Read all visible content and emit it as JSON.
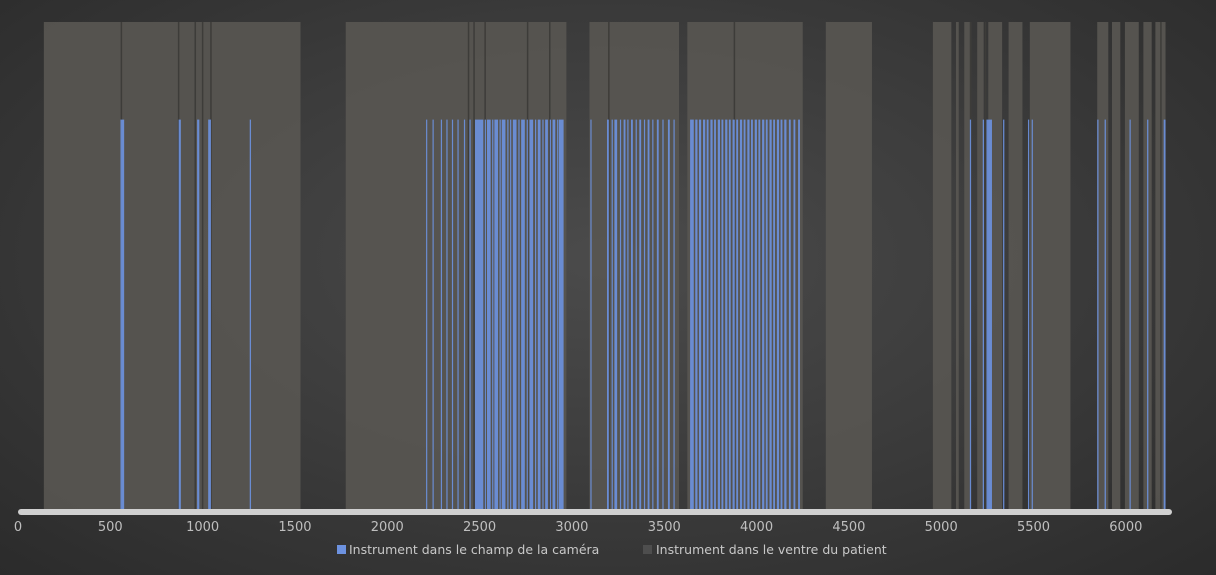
{
  "chart_data": {
    "type": "bar",
    "title": "",
    "xlabel": "",
    "ylabel": "",
    "xlim": [
      0,
      6250
    ],
    "x_ticks": [
      "0",
      "500",
      "1000",
      "1500",
      "2000",
      "2500",
      "3000",
      "3500",
      "4000",
      "4500",
      "5000",
      "5500",
      "6000"
    ],
    "grid": false,
    "legend_position": "bottom",
    "colors": {
      "background": "#3a3a3a",
      "camera": "#6d92e0",
      "belly": "#585651",
      "axis": "#d0d0d0"
    },
    "series": [
      {
        "name": "Instrument dans le champ de la caméra",
        "value": 1,
        "color": "#6d92e0",
        "intervals": [
          [
            555,
            575
          ],
          [
            870,
            882
          ],
          [
            970,
            982
          ],
          [
            1030,
            1045
          ],
          [
            1255,
            1262
          ],
          [
            2210,
            2216
          ],
          [
            2245,
            2250
          ],
          [
            2290,
            2294
          ],
          [
            2320,
            2324
          ],
          [
            2350,
            2354
          ],
          [
            2380,
            2384
          ],
          [
            2415,
            2420
          ],
          [
            2445,
            2450
          ],
          [
            2475,
            2520
          ],
          [
            2528,
            2534
          ],
          [
            2540,
            2560
          ],
          [
            2568,
            2574
          ],
          [
            2580,
            2600
          ],
          [
            2608,
            2614
          ],
          [
            2620,
            2640
          ],
          [
            2650,
            2656
          ],
          [
            2665,
            2670
          ],
          [
            2680,
            2700
          ],
          [
            2710,
            2716
          ],
          [
            2725,
            2745
          ],
          [
            2755,
            2760
          ],
          [
            2770,
            2790
          ],
          [
            2800,
            2806
          ],
          [
            2815,
            2830
          ],
          [
            2840,
            2846
          ],
          [
            2855,
            2870
          ],
          [
            2880,
            2886
          ],
          [
            2895,
            2910
          ],
          [
            2920,
            2926
          ],
          [
            2930,
            2955
          ],
          [
            3100,
            3106
          ],
          [
            3190,
            3200
          ],
          [
            3215,
            3220
          ],
          [
            3230,
            3245
          ],
          [
            3260,
            3266
          ],
          [
            3280,
            3290
          ],
          [
            3300,
            3306
          ],
          [
            3320,
            3330
          ],
          [
            3345,
            3350
          ],
          [
            3365,
            3375
          ],
          [
            3390,
            3396
          ],
          [
            3410,
            3420
          ],
          [
            3435,
            3440
          ],
          [
            3460,
            3470
          ],
          [
            3490,
            3496
          ],
          [
            3520,
            3530
          ],
          [
            3550,
            3556
          ],
          [
            3640,
            3660
          ],
          [
            3668,
            3680
          ],
          [
            3688,
            3700
          ],
          [
            3710,
            3722
          ],
          [
            3730,
            3740
          ],
          [
            3750,
            3762
          ],
          [
            3770,
            3780
          ],
          [
            3790,
            3802
          ],
          [
            3810,
            3820
          ],
          [
            3830,
            3842
          ],
          [
            3850,
            3860
          ],
          [
            3870,
            3882
          ],
          [
            3890,
            3900
          ],
          [
            3910,
            3922
          ],
          [
            3930,
            3940
          ],
          [
            3950,
            3962
          ],
          [
            3970,
            3980
          ],
          [
            3990,
            4002
          ],
          [
            4010,
            4020
          ],
          [
            4030,
            4042
          ],
          [
            4050,
            4060
          ],
          [
            4070,
            4082
          ],
          [
            4090,
            4100
          ],
          [
            4110,
            4122
          ],
          [
            4130,
            4140
          ],
          [
            4150,
            4162
          ],
          [
            4175,
            4185
          ],
          [
            4200,
            4210
          ],
          [
            4225,
            4235
          ],
          [
            5155,
            5162
          ],
          [
            5225,
            5232
          ],
          [
            5245,
            5275
          ],
          [
            5335,
            5342
          ],
          [
            5470,
            5476
          ],
          [
            5490,
            5496
          ],
          [
            5845,
            5852
          ],
          [
            5885,
            5892
          ],
          [
            6020,
            6026
          ],
          [
            6115,
            6122
          ],
          [
            6205,
            6215
          ]
        ]
      },
      {
        "name": "Instrument dans le ventre du patient",
        "value": 1.25,
        "color": "#585651",
        "intervals": [
          [
            140,
            1530
          ],
          [
            1775,
            2970
          ],
          [
            3095,
            3580
          ],
          [
            3625,
            4250
          ],
          [
            4375,
            4625
          ],
          [
            4955,
            5055
          ],
          [
            5080,
            5095
          ],
          [
            5125,
            5155
          ],
          [
            5195,
            5230
          ],
          [
            5255,
            5330
          ],
          [
            5365,
            5440
          ],
          [
            5480,
            5700
          ],
          [
            5845,
            5905
          ],
          [
            5925,
            5970
          ],
          [
            5995,
            6070
          ],
          [
            6095,
            6140
          ],
          [
            6160,
            6215
          ]
        ],
        "divider_lines": [
          560,
          870,
          960,
          1000,
          1045,
          2440,
          2470,
          2530,
          2760,
          2880,
          3200,
          3880,
          5160,
          5240,
          6190
        ]
      }
    ]
  },
  "legend": {
    "items": [
      {
        "label": "Instrument dans le champ de la caméra",
        "color": "#6d92e0"
      },
      {
        "label": "Instrument dans le ventre du patient",
        "color": "#4e4e4e"
      }
    ]
  }
}
